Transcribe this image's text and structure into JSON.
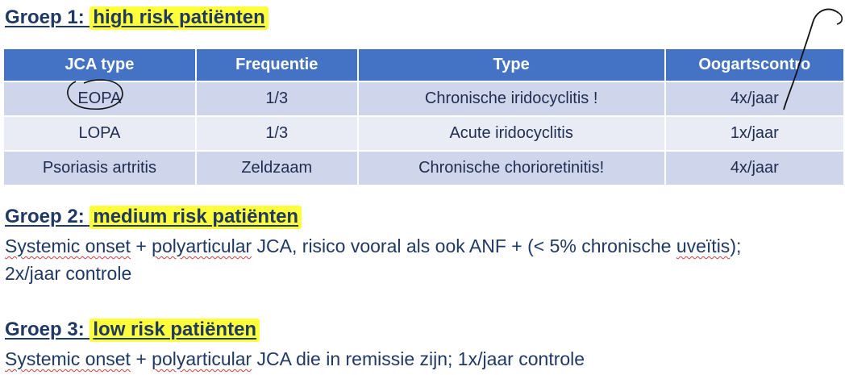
{
  "group1": {
    "prefix": "Groep 1: ",
    "highlight": "high risk patiënten"
  },
  "table": {
    "headers": [
      "JCA type",
      "Frequentie",
      "Type",
      "Oogartscontro"
    ],
    "rows": [
      [
        "EOPA",
        "1/3",
        "Chronische iridocyclitis !",
        "4x/jaar"
      ],
      [
        "LOPA",
        "1/3",
        "Acute iridocyclitis",
        "1x/jaar"
      ],
      [
        "Psoriasis artritis",
        "Zeldzaam",
        "Chronische chorioretinitis!",
        "4x/jaar"
      ]
    ]
  },
  "group2": {
    "prefix": "Groep 2: ",
    "highlight": "medium risk patiënten",
    "line1": {
      "a": "Systemic onset",
      "b": " + ",
      "c": "polyarticular",
      "d": " JCA, risico vooral als ook ANF + (< 5% chronische ",
      "e": "uveïtis",
      "f": ");"
    },
    "line2": "2x/jaar controle"
  },
  "group3": {
    "prefix": "Groep 3: ",
    "highlight": "low risk patiënten",
    "line": {
      "a": "Systemic onset",
      "b": " + ",
      "c": "polyarticular",
      "d": " JCA die in remissie zijn; 1x/jaar controle"
    }
  },
  "colors": {
    "header": "#4472c4",
    "row_dark": "#cfd5ea",
    "row_light": "#e9ebf5",
    "highlight": "#ffff3a",
    "heading": "#1f3864"
  }
}
